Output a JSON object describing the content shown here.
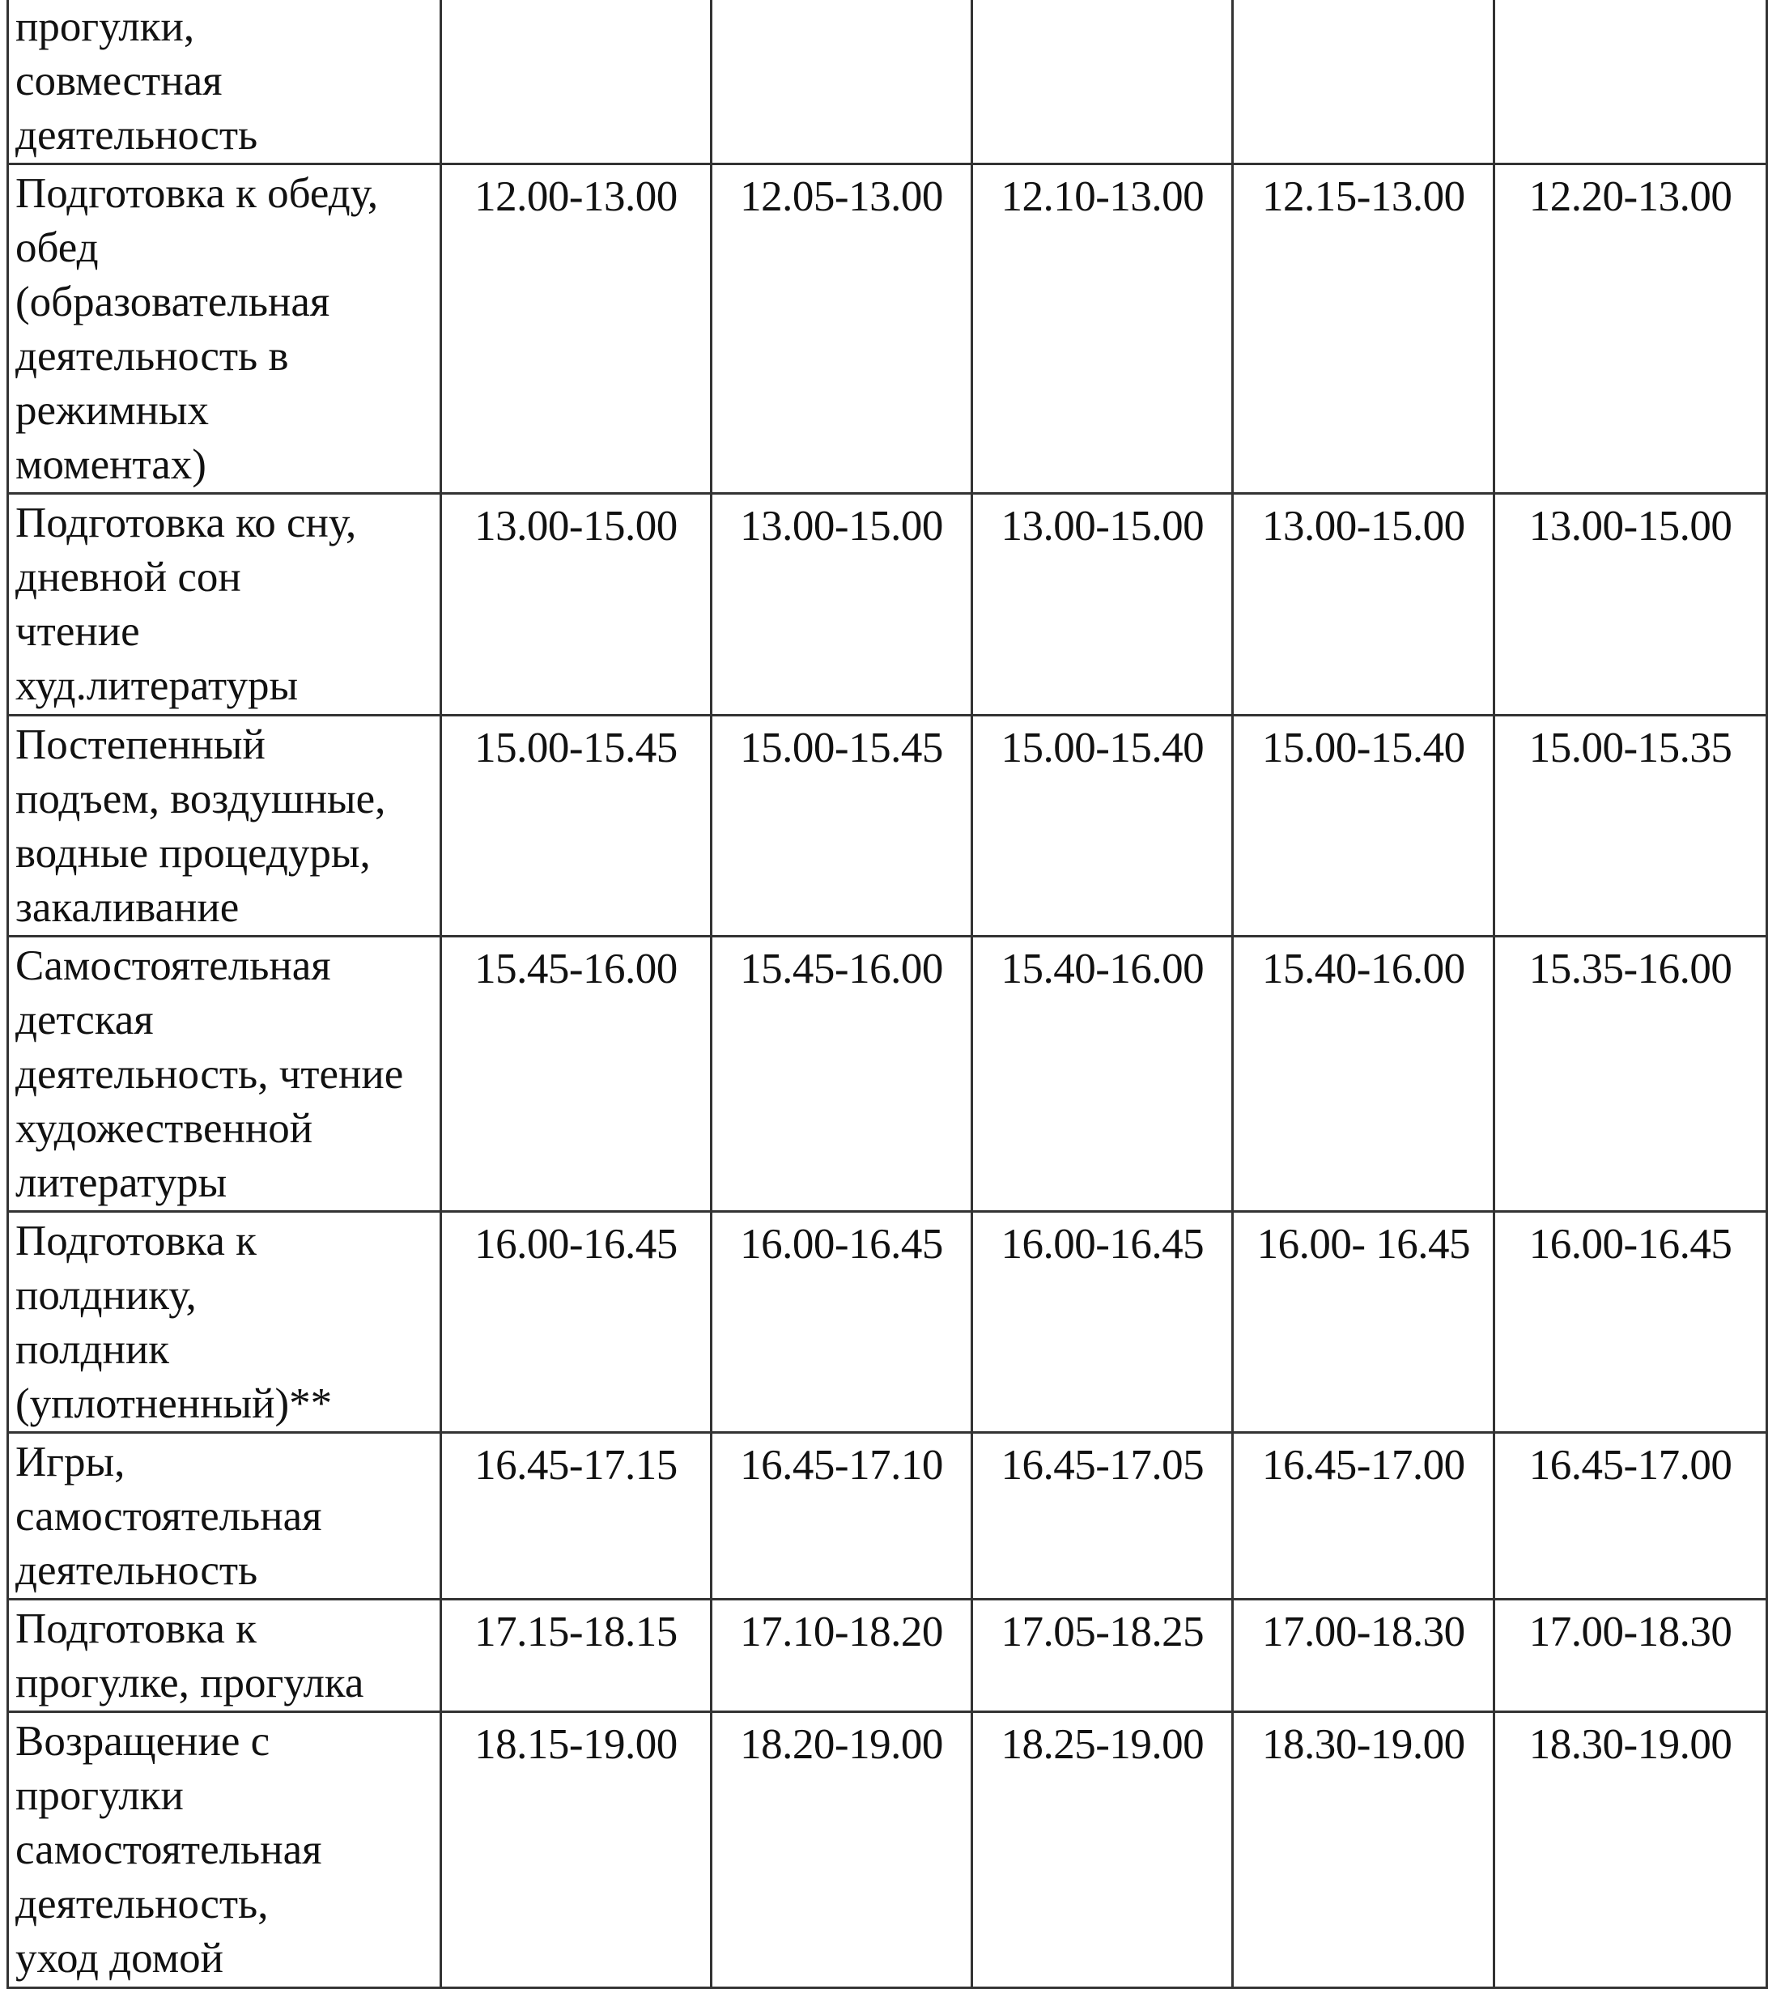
{
  "table": {
    "rows": [
      {
        "activity": "прогулки,\nсовместная\nдеятельность",
        "times": [
          "",
          "",
          "",
          "",
          ""
        ]
      },
      {
        "activity": "Подготовка к обеду,\nобед\n(образовательная\nдеятельность в\nрежимных\nмоментах)",
        "times": [
          "12.00-13.00",
          "12.05-13.00",
          "12.10-13.00",
          "12.15-13.00",
          "12.20-13.00"
        ]
      },
      {
        "activity": "Подготовка ко сну,\nдневной сон\nчтение\nхуд.литературы",
        "times": [
          "13.00-15.00",
          "13.00-15.00",
          "13.00-15.00",
          "13.00-15.00",
          "13.00-15.00"
        ]
      },
      {
        "activity": "Постепенный\nподъем, воздушные,\nводные процедуры,\nзакаливание",
        "times": [
          "15.00-15.45",
          "15.00-15.45",
          "15.00-15.40",
          "15.00-15.40",
          "15.00-15.35"
        ]
      },
      {
        "activity": "Самостоятельная\nдетская\nдеятельность, чтение\nхудожественной\nлитературы",
        "times": [
          "15.45-16.00",
          "15.45-16.00",
          "15.40-16.00",
          "15.40-16.00",
          "15.35-16.00"
        ]
      },
      {
        "activity": "Подготовка к\nполднику,\nполдник\n(уплотненный)**",
        "times": [
          "16.00-16.45",
          "16.00-16.45",
          "16.00-16.45",
          "16.00- 16.45",
          "16.00-16.45"
        ]
      },
      {
        "activity": "Игры,\nсамостоятельная\nдеятельность",
        "times": [
          "16.45-17.15",
          "16.45-17.10",
          "16.45-17.05",
          "16.45-17.00",
          "16.45-17.00"
        ]
      },
      {
        "activity": "Подготовка к\nпрогулке, прогулка",
        "times": [
          "17.15-18.15",
          "17.10-18.20",
          "17.05-18.25",
          "17.00-18.30",
          "17.00-18.30"
        ]
      },
      {
        "activity": "Возращение с\nпрогулки\nсамостоятельная\nдеятельность,\nуход домой",
        "times": [
          "18.15-19.00",
          "18.20-19.00",
          "18.25-19.00",
          "18.30-19.00",
          "18.30-19.00"
        ]
      }
    ]
  }
}
